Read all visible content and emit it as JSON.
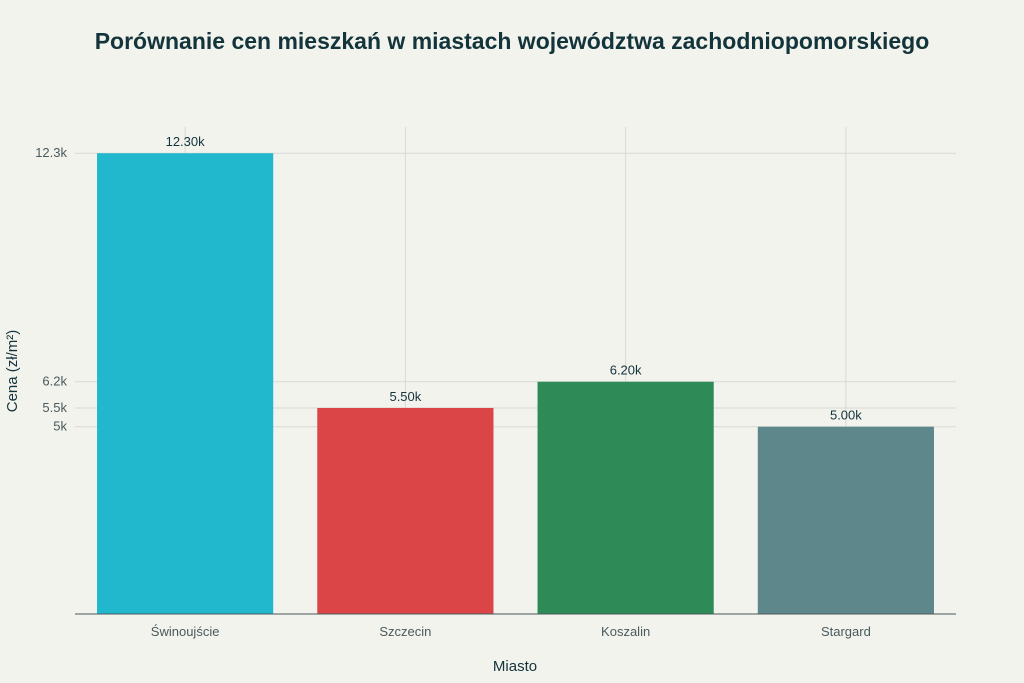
{
  "chart_data": {
    "type": "bar",
    "title": "Porównanie cen mieszkań w miastach województwa zachodniopomorskiego",
    "xlabel": "Miasto",
    "ylabel": "Cena (zł/m²)",
    "categories": [
      "Świnoujście",
      "Szczecin",
      "Koszalin",
      "Stargard"
    ],
    "values": [
      12300,
      5500,
      6200,
      5000
    ],
    "data_labels": [
      "12.30k",
      "5.50k",
      "6.20k",
      "5.00k"
    ],
    "colors": [
      "#21b8cd",
      "#dc4548",
      "#2e8b57",
      "#5e878c"
    ],
    "ylim": [
      0,
      13000
    ],
    "yticks": [
      5000,
      5500,
      6200,
      12300
    ],
    "ytick_labels": [
      "5k",
      "5.5k",
      "6.2k",
      "12.3k"
    ],
    "grid": true,
    "legend": false
  }
}
